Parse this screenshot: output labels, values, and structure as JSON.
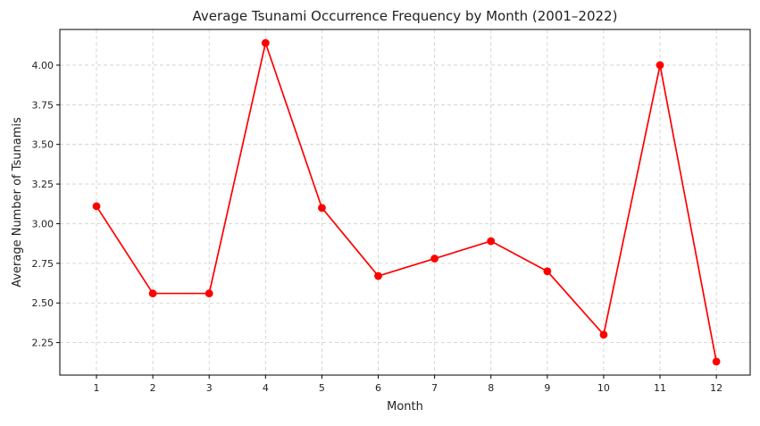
{
  "chart_data": {
    "type": "line",
    "title": "Average Tsunami Occurrence Frequency by Month (2001–2022)",
    "xlabel": "Month",
    "ylabel": "Average Number of Tsunamis",
    "x": [
      1,
      2,
      3,
      4,
      5,
      6,
      7,
      8,
      9,
      10,
      11,
      12
    ],
    "x_tick_labels": [
      "1",
      "2",
      "3",
      "4",
      "5",
      "6",
      "7",
      "8",
      "9",
      "10",
      "11",
      "12"
    ],
    "series": [
      {
        "values": [
          3.11,
          2.56,
          2.56,
          4.14,
          3.1,
          2.67,
          2.78,
          2.89,
          2.7,
          2.3,
          4.0,
          2.13
        ],
        "color": "#ff0000",
        "marker": "circle"
      }
    ],
    "xlim": [
      0.35,
      12.6
    ],
    "ylim": [
      2.045,
      4.225
    ],
    "y_ticks": [
      2.25,
      2.5,
      2.75,
      3.0,
      3.25,
      3.5,
      3.75,
      4.0
    ],
    "y_tick_labels": [
      "2.25",
      "2.50",
      "2.75",
      "3.00",
      "3.25",
      "3.50",
      "3.75",
      "4.00"
    ],
    "grid": true,
    "grid_style": "dashed",
    "legend": false
  }
}
